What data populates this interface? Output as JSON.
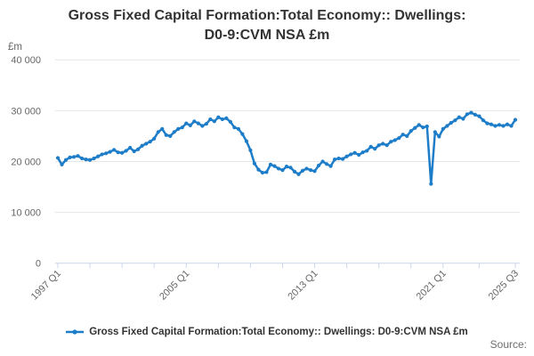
{
  "title_lines": [
    "Gross Fixed Capital Formation:Total Economy:: Dwellings:",
    "D0-9:CVM NSA £m"
  ],
  "y_axis_unit": "£m",
  "source_label": "Source:",
  "legend": {
    "label": "Gross Fixed Capital Formation:Total Economy:: Dwellings: D0-9:CVM NSA £m",
    "marker": "line-with-dot-icon"
  },
  "colors": {
    "series": "#1e7dc8",
    "grid": "#e6e6e6",
    "axis": "#ccd6eb",
    "tick_label": "#666666",
    "title_text": "#333333",
    "legend_text": "#333333",
    "source_text": "#6e6e6e",
    "background": "#ffffff"
  },
  "chart_data": {
    "type": "line",
    "title": "Gross Fixed Capital Formation:Total Economy:: Dwellings: D0-9:CVM NSA £m",
    "series_name": "Gross Fixed Capital Formation:Total Economy:: Dwellings: D0-9:CVM NSA £m",
    "xlabel": "",
    "ylabel": "£m",
    "x_start": "1997 Q1",
    "x_end": "2025 Q3",
    "frequency": "quarterly",
    "ylim": [
      0,
      40000
    ],
    "grid": "horizontal",
    "legend_position": "bottom",
    "marker": "dot",
    "y_ticks": [
      {
        "value": 0,
        "label": "0"
      },
      {
        "value": 10000,
        "label": "10 000"
      },
      {
        "value": 20000,
        "label": "20 000"
      },
      {
        "value": 30000,
        "label": "30 000"
      },
      {
        "value": 40000,
        "label": "40 000"
      }
    ],
    "x_ticks": [
      {
        "q": 0,
        "label": "1997 Q1"
      },
      {
        "q": 8,
        "label": ""
      },
      {
        "q": 16,
        "label": ""
      },
      {
        "q": 24,
        "label": ""
      },
      {
        "q": 32,
        "label": "2005 Q1"
      },
      {
        "q": 40,
        "label": ""
      },
      {
        "q": 48,
        "label": ""
      },
      {
        "q": 56,
        "label": ""
      },
      {
        "q": 64,
        "label": "2013 Q1"
      },
      {
        "q": 72,
        "label": ""
      },
      {
        "q": 80,
        "label": ""
      },
      {
        "q": 88,
        "label": ""
      },
      {
        "q": 96,
        "label": "2021 Q1"
      },
      {
        "q": 105,
        "label": ""
      },
      {
        "q": 114,
        "label": "2025 Q3"
      }
    ],
    "values": [
      20700,
      19400,
      20300,
      20800,
      20900,
      21100,
      20600,
      20400,
      20300,
      20600,
      21000,
      21400,
      21600,
      21900,
      22300,
      21800,
      21700,
      22100,
      22700,
      22000,
      22400,
      23100,
      23500,
      23900,
      24500,
      25800,
      26400,
      25200,
      25000,
      25800,
      26400,
      26700,
      27500,
      27100,
      27900,
      27500,
      27000,
      27400,
      28300,
      27900,
      28700,
      28300,
      28500,
      27800,
      26700,
      26400,
      25400,
      24000,
      22200,
      19600,
      18400,
      17800,
      17900,
      19400,
      19100,
      18600,
      18300,
      19000,
      18800,
      18000,
      17500,
      18200,
      18600,
      18300,
      18100,
      19200,
      20000,
      19500,
      19100,
      20400,
      20600,
      20500,
      21000,
      21400,
      21700,
      21300,
      21800,
      22100,
      22900,
      22500,
      23200,
      23500,
      23200,
      23900,
      24200,
      24600,
      25300,
      25000,
      26000,
      26600,
      27200,
      26700,
      26900,
      15600,
      25800,
      24900,
      26400,
      27000,
      27600,
      28100,
      28700,
      28400,
      29300,
      29600,
      29200,
      28900,
      28100,
      27500,
      27300,
      27000,
      27200,
      27000,
      27300,
      27000,
      28200
    ]
  }
}
